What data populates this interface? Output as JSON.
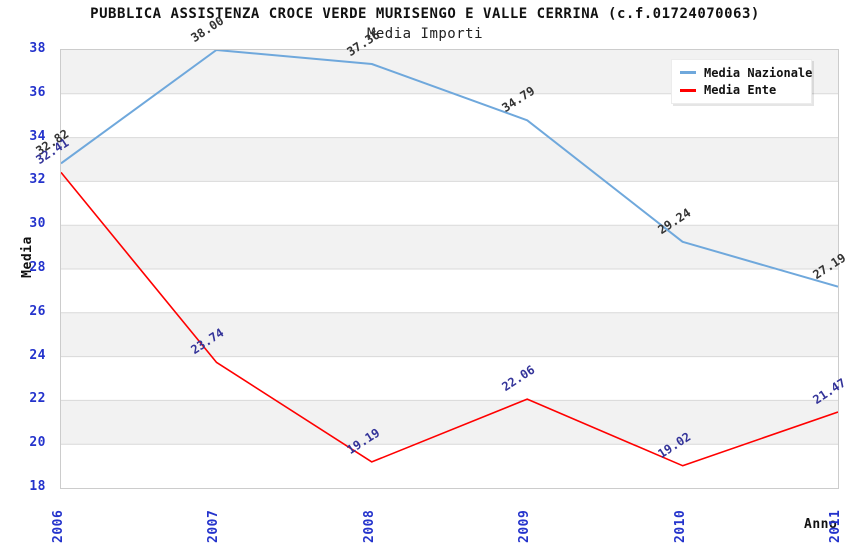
{
  "title": "PUBBLICA ASSISTENZA CROCE VERDE MURISENGO E VALLE CERRINA (c.f.01724070063)",
  "subtitle": "Media Importi",
  "chart_data": {
    "type": "line",
    "categories": [
      "2006",
      "2007",
      "2008",
      "2009",
      "2010",
      "2011"
    ],
    "series": [
      {
        "name": "Media Nazionale",
        "values": [
          32.82,
          38.0,
          37.36,
          34.79,
          29.24,
          27.19
        ],
        "color": "#6FA8DC",
        "label_color": "#333333",
        "stroke_width": 2
      },
      {
        "name": "Media Ente",
        "values": [
          32.41,
          23.74,
          19.19,
          22.06,
          19.02,
          21.47
        ],
        "color": "#FF0000",
        "label_color": "#333399",
        "stroke_width": 1.6
      }
    ],
    "xlabel": "Anno",
    "ylabel": "Media",
    "ylim": [
      18,
      38
    ],
    "ytick_step": 2,
    "yticks": [
      38,
      36,
      34,
      32,
      30,
      28,
      26,
      24,
      22,
      20,
      18
    ],
    "grid": true,
    "legend_position": "top-right",
    "band_colors": [
      "#f2f2f2",
      "#ffffff"
    ],
    "gridline_color": "#d9d9d9",
    "axis_tick_color": "#2433cc",
    "value_label_format": "0.00"
  }
}
